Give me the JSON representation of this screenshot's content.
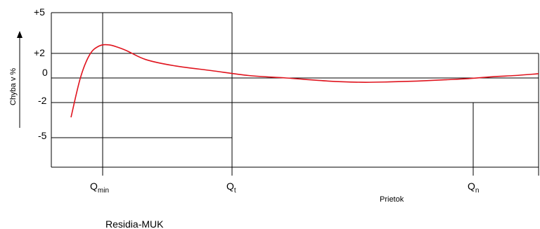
{
  "chart_data": {
    "type": "line",
    "title": "",
    "ylabel": "Chyba v %",
    "xlabel": "Prietok",
    "footer": "Residia-MUK",
    "y_ticks": [
      "+5",
      "+2",
      "0",
      "-2",
      "-5"
    ],
    "x_markers": [
      {
        "main": "Q",
        "sub": "min"
      },
      {
        "main": "Q",
        "sub": "t"
      },
      {
        "main": "Q",
        "sub": "n"
      }
    ],
    "curve_color": "#e0141e",
    "series": [
      {
        "x": [
          0.0,
          0.02,
          0.04,
          0.06,
          0.08,
          0.1,
          0.12,
          0.16,
          0.22,
          0.3,
          0.38,
          0.46,
          0.55,
          0.62,
          0.68,
          0.74,
          0.8,
          0.85,
          0.9,
          0.95,
          1.0
        ],
        "y": [
          -3.2,
          0.0,
          1.9,
          2.6,
          2.7,
          2.5,
          2.2,
          1.5,
          1.0,
          0.6,
          0.2,
          0.0,
          -0.25,
          -0.35,
          -0.32,
          -0.25,
          -0.15,
          -0.05,
          0.1,
          0.2,
          0.35
        ]
      }
    ]
  }
}
